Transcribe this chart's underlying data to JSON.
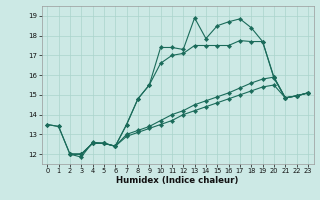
{
  "xlabel": "Humidex (Indice chaleur)",
  "xlim": [
    -0.5,
    23.5
  ],
  "ylim": [
    11.5,
    19.5
  ],
  "xticks": [
    0,
    1,
    2,
    3,
    4,
    5,
    6,
    7,
    8,
    9,
    10,
    11,
    12,
    13,
    14,
    15,
    16,
    17,
    18,
    19,
    20,
    21,
    22,
    23
  ],
  "yticks": [
    12,
    13,
    14,
    15,
    16,
    17,
    18,
    19
  ],
  "bg_color": "#cce9e5",
  "line_color": "#1a6b5a",
  "grid_color": "#aad4cc",
  "line1_x": [
    0,
    1,
    2,
    3,
    4,
    5,
    6,
    7,
    8,
    9,
    10,
    11,
    12,
    13,
    14,
    15,
    16,
    17,
    18,
    19,
    20,
    21,
    22,
    23
  ],
  "line1_y": [
    13.5,
    13.4,
    12.0,
    11.85,
    12.6,
    12.55,
    12.4,
    13.5,
    14.8,
    15.5,
    17.4,
    17.4,
    17.3,
    18.9,
    17.85,
    18.5,
    18.7,
    18.85,
    18.4,
    17.7,
    15.9,
    14.85,
    14.95,
    15.1
  ],
  "line2_x": [
    0,
    1,
    2,
    3,
    4,
    5,
    6,
    7,
    8,
    9,
    10,
    11,
    12,
    13,
    14,
    15,
    16,
    17,
    18,
    19,
    20,
    21,
    22,
    23
  ],
  "line2_y": [
    13.5,
    13.4,
    12.0,
    12.0,
    12.55,
    12.55,
    12.4,
    13.5,
    14.8,
    15.5,
    16.6,
    17.0,
    17.1,
    17.5,
    17.5,
    17.5,
    17.5,
    17.75,
    17.7,
    17.7,
    15.85,
    14.85,
    14.95,
    15.1
  ],
  "line3_x": [
    2,
    3,
    4,
    5,
    6,
    7,
    8,
    9,
    10,
    11,
    12,
    13,
    14,
    15,
    16,
    17,
    18,
    19,
    20,
    21,
    22,
    23
  ],
  "line3_y": [
    12.0,
    12.0,
    12.55,
    12.55,
    12.4,
    13.0,
    13.2,
    13.4,
    13.7,
    14.0,
    14.2,
    14.5,
    14.7,
    14.9,
    15.1,
    15.35,
    15.6,
    15.8,
    15.9,
    14.85,
    14.95,
    15.1
  ],
  "line4_x": [
    2,
    3,
    4,
    5,
    6,
    7,
    8,
    9,
    10,
    11,
    12,
    13,
    14,
    15,
    16,
    17,
    18,
    19,
    20,
    21,
    22,
    23
  ],
  "line4_y": [
    12.0,
    12.0,
    12.55,
    12.55,
    12.4,
    12.9,
    13.1,
    13.3,
    13.5,
    13.7,
    14.0,
    14.2,
    14.4,
    14.6,
    14.8,
    15.0,
    15.2,
    15.4,
    15.5,
    14.85,
    14.95,
    15.1
  ]
}
